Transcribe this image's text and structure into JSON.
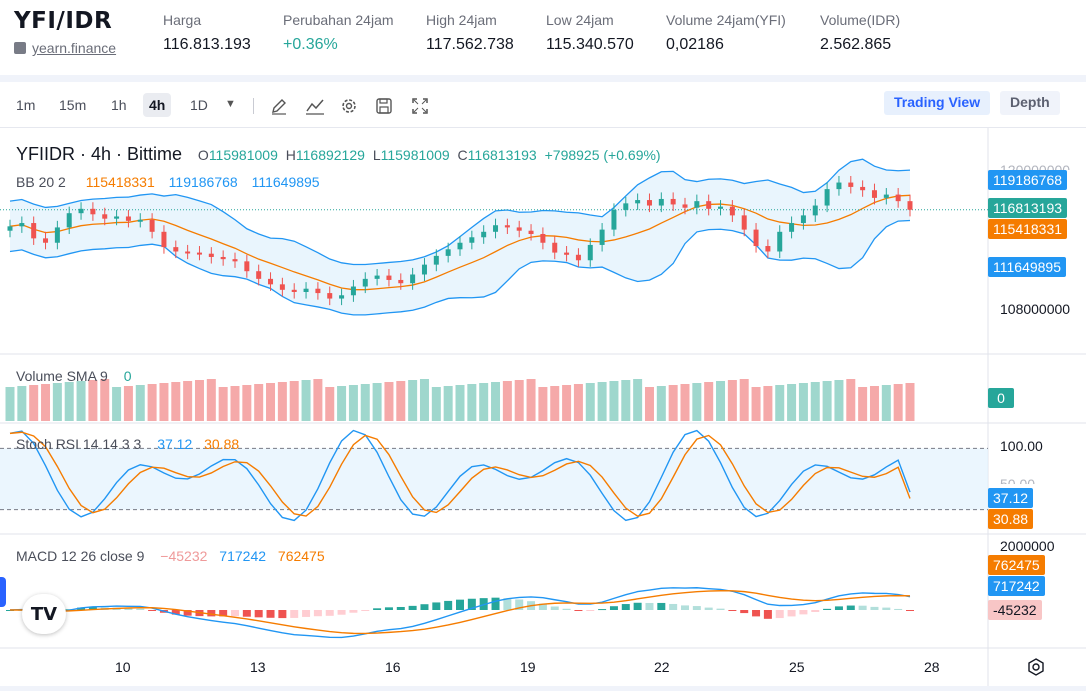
{
  "header": {
    "pair": "YFI/IDR",
    "source": "yearn.finance",
    "stats": [
      {
        "label": "Harga",
        "value": "116.813.193",
        "color": "#131722"
      },
      {
        "label": "Perubahan 24jam",
        "value": "+0.36%",
        "color": "#26a69a"
      },
      {
        "label": "High 24jam",
        "value": "117.562.738",
        "color": "#131722"
      },
      {
        "label": "Low 24jam",
        "value": "115.340.570",
        "color": "#131722"
      },
      {
        "label": "Volume 24jam(YFI)",
        "value": "0,02186",
        "color": "#131722"
      },
      {
        "label": "Volume(IDR)",
        "value": "2.562.865",
        "color": "#131722"
      }
    ]
  },
  "toolbar": {
    "timeframes": [
      "1m",
      "15m",
      "1h",
      "4h",
      "1D"
    ],
    "active_timeframe": "4h",
    "icons": [
      "chevron-down-icon",
      "pencil-icon",
      "indicator-icon",
      "gear-icon",
      "save-icon",
      "fullscreen-icon"
    ],
    "trading_view": "Trading View",
    "depth": "Depth"
  },
  "legend": {
    "symbol": "YFIIDR · 4h · Bittime",
    "o_label": "O",
    "o": "115981009",
    "h_label": "H",
    "h": "116892129",
    "l_label": "L",
    "l": "115981009",
    "c_label": "C",
    "c": "116813193",
    "change": "+798925 (+0.69%)",
    "bb_label": "BB 20 2",
    "bb_mid": "115418331",
    "bb_up": "119186768",
    "bb_low": "111649895",
    "vol_label": "Volume SMA 9",
    "vol_val": "0",
    "stoch_label": "Stoch RSI 14 14 3 3",
    "stoch_k": "37.12",
    "stoch_d": "30.88",
    "macd_label": "MACD 12 26 close 9",
    "macd_hist": "−45232",
    "macd_line": "717242",
    "macd_signal": "762475"
  },
  "price_axis": {
    "top_partial": "120000000",
    "label_108": "108000000",
    "tag_upper": "119186768",
    "tag_price": "116813193",
    "tag_mid": "115418331",
    "tag_lower": "111649895",
    "vol_tag": "0",
    "stoch_100": "100.00",
    "stoch_50": "50.00",
    "stoch_k_tag": "37.12",
    "stoch_d_tag": "30.88",
    "macd_2m": "2000000",
    "macd_signal_tag": "762475",
    "macd_line_tag": "717242",
    "macd_hist_tag": "-45232"
  },
  "time_axis": [
    "10",
    "13",
    "16",
    "19",
    "22",
    "25",
    "28"
  ],
  "colors": {
    "up": "#26a69a",
    "down": "#ef5350",
    "bb_mid": "#f57c00",
    "bb_band": "#2196f3",
    "stoch_k": "#2196f3",
    "stoch_d": "#f57c00",
    "accent": "#2962ff"
  },
  "chart_data": {
    "type": "candlestick",
    "bb_anchor_points": {
      "upper_start": 117700000,
      "upper_end": 119186768,
      "mid_end": 115418331,
      "lower_end": 111649895
    },
    "close_series": [
      115300000,
      115600000,
      114200000,
      113800000,
      115200000,
      116500000,
      116900000,
      116400000,
      116000000,
      116200000,
      115800000,
      115900000,
      114800000,
      113400000,
      113000000,
      112900000,
      112800000,
      112500000,
      112300000,
      112100000,
      111200000,
      110500000,
      110000000,
      109500000,
      109300000,
      109600000,
      109200000,
      108700000,
      109000000,
      109800000,
      110500000,
      110800000,
      110400000,
      110100000,
      110900000,
      111800000,
      112600000,
      113200000,
      113800000,
      114300000,
      114800000,
      115400000,
      115200000,
      114900000,
      114600000,
      113800000,
      112900000,
      112700000,
      112200000,
      113600000,
      115000000,
      116800000,
      117400000,
      117700000,
      117200000,
      117800000,
      117300000,
      117000000,
      117600000,
      116900000,
      117100000,
      116300000,
      115000000,
      113500000,
      113000000,
      114800000,
      115600000,
      116300000,
      117200000,
      118700000,
      119300000,
      118900000,
      118600000,
      117900000,
      118200000,
      117600000,
      116813193
    ],
    "volume": "all bars present (unlabeled)",
    "stoch_rsi": {
      "k_last": 37.12,
      "d_last": 30.88,
      "range": [
        0,
        100
      ],
      "levels": [
        20,
        80
      ]
    },
    "macd": {
      "hist_last": -45232,
      "macd_last": 717242,
      "signal_last": 762475
    }
  }
}
